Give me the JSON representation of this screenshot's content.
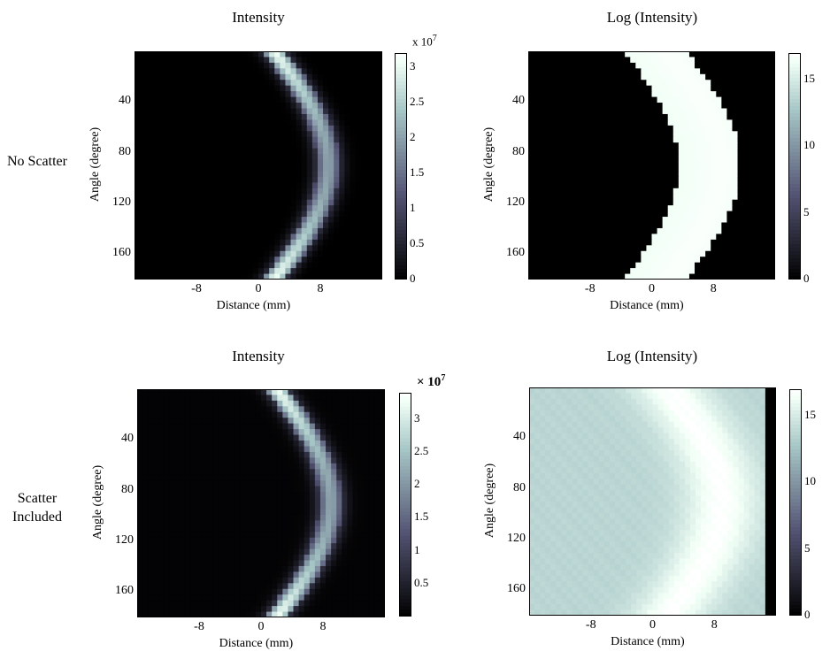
{
  "row_labels": [
    {
      "text": "No Scatter"
    },
    {
      "text": "Scatter Included"
    }
  ],
  "chart_data": [
    {
      "type": "heatmap",
      "title": "Intensity",
      "xlabel": "Distance (mm)",
      "ylabel": "Angle (degree)",
      "xlim": [
        -16,
        16
      ],
      "ylim": [
        0,
        180
      ],
      "xticks": [
        "-8",
        "0",
        "8"
      ],
      "yticks": [
        "40",
        "80",
        "120",
        "160"
      ],
      "colorbar": {
        "min": 0,
        "max": 3.2,
        "ticks": [
          "0",
          "0.5",
          "1",
          "1.5",
          "2",
          "2.5",
          "3"
        ],
        "multiplier": "x 10",
        "exponent": "7"
      },
      "colormap": "bone",
      "curve": {
        "center_x_at_0deg": 2,
        "center_x_at_90deg": 9,
        "center_x_at_180deg": 2,
        "band_width_mm": 2.5
      },
      "background_level": 0.0,
      "peak_level": 3.1
    },
    {
      "type": "heatmap",
      "title": "Log (Intensity)",
      "xlabel": "Distance (mm)",
      "ylabel": "Angle (degree)",
      "xlim": [
        -16,
        16
      ],
      "ylim": [
        0,
        180
      ],
      "xticks": [
        "-8",
        "0",
        "8"
      ],
      "yticks": [
        "40",
        "80",
        "120",
        "160"
      ],
      "colorbar": {
        "min": 0,
        "max": 17,
        "ticks": [
          "0",
          "5",
          "10",
          "15"
        ]
      },
      "colormap": "bone",
      "curve": {
        "center_x_at_0deg": 2,
        "center_x_at_90deg": 9,
        "center_x_at_180deg": 2,
        "band_width_mm": 7
      },
      "background_level": 0.0,
      "peak_level": 16.8
    },
    {
      "type": "heatmap",
      "title": "Intensity",
      "xlabel": "Distance (mm)",
      "ylabel": "Angle (degree)",
      "xlim": [
        -16,
        16
      ],
      "ylim": [
        0,
        180
      ],
      "xticks": [
        "-8",
        "0",
        "8"
      ],
      "yticks": [
        "40",
        "80",
        "120",
        "160"
      ],
      "colorbar": {
        "min": 0,
        "max": 3.4,
        "ticks": [
          "0.5",
          "1",
          "1.5",
          "2",
          "2.5",
          "3"
        ],
        "multiplier": "× 10",
        "exponent": "7"
      },
      "colormap": "bone",
      "curve": {
        "center_x_at_0deg": 2,
        "center_x_at_90deg": 9,
        "center_x_at_180deg": 2,
        "band_width_mm": 2.5
      },
      "background_level": 0.05,
      "peak_level": 3.3
    },
    {
      "type": "heatmap",
      "title": "Log (Intensity)",
      "xlabel": "Distance (mm)",
      "ylabel": "Angle (degree)",
      "xlim": [
        -16,
        16
      ],
      "ylim": [
        0,
        180
      ],
      "xticks": [
        "-8",
        "0",
        "8"
      ],
      "yticks": [
        "40",
        "80",
        "120",
        "160"
      ],
      "colorbar": {
        "min": 0,
        "max": 17,
        "ticks": [
          "0",
          "5",
          "10",
          "15"
        ]
      },
      "colormap": "bone",
      "curve": {
        "center_x_at_0deg": 2,
        "center_x_at_90deg": 9,
        "center_x_at_180deg": 2,
        "band_width_mm": 3.5
      },
      "background_level": 13.5,
      "peak_level": 16.8
    }
  ]
}
